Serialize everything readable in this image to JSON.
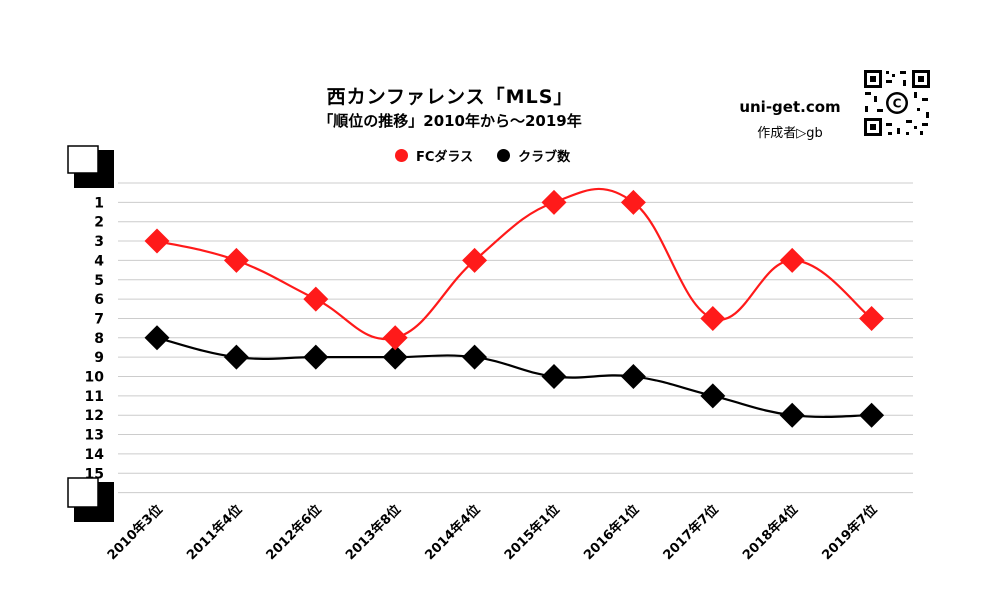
{
  "header": {
    "title": "西カンファレンス「MLS」",
    "subtitle": "「順位の推移」2010年から～2019年",
    "site": "uni-get.com",
    "author": "作成者▷gb",
    "qr_center": "C"
  },
  "colors": {
    "fc": "#ff1a1a",
    "club": "#000000",
    "grid": "#cccccc"
  },
  "chart_data": {
    "type": "line",
    "categories": [
      "2010年3位",
      "2011年4位",
      "2012年6位",
      "2013年8位",
      "2014年4位",
      "2015年1位",
      "2016年1位",
      "2017年7位",
      "2018年4位",
      "2019年7位"
    ],
    "series": [
      {
        "name": "FCダラス",
        "values": [
          3,
          4,
          6,
          8,
          4,
          1,
          1,
          7,
          4,
          7
        ]
      },
      {
        "name": "クラブ数",
        "values": [
          8,
          9,
          9,
          9,
          9,
          10,
          10,
          11,
          12,
          12
        ]
      }
    ],
    "y_ticks": [
      1,
      2,
      3,
      4,
      5,
      6,
      7,
      8,
      9,
      10,
      11,
      12,
      13,
      14,
      15
    ],
    "y_inverted": true,
    "ylim": [
      0,
      16
    ],
    "grid": true,
    "legend_position": "top-center"
  }
}
